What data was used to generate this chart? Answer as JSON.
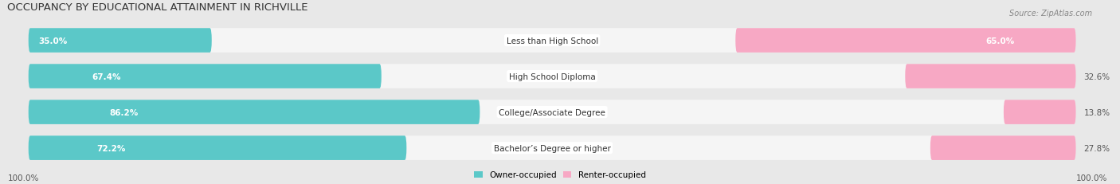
{
  "title": "OCCUPANCY BY EDUCATIONAL ATTAINMENT IN RICHVILLE",
  "source": "Source: ZipAtlas.com",
  "categories": [
    "Less than High School",
    "High School Diploma",
    "College/Associate Degree",
    "Bachelor’s Degree or higher"
  ],
  "owner_pct": [
    35.0,
    67.4,
    86.2,
    72.2
  ],
  "renter_pct": [
    65.0,
    32.6,
    13.8,
    27.8
  ],
  "owner_color": "#5BC8C8",
  "renter_color": "#F7A8C4",
  "bg_color": "#e8e8e8",
  "bar_bg_color": "#f5f5f5",
  "title_fontsize": 9.5,
  "label_fontsize": 7.5,
  "tick_fontsize": 7.5,
  "source_fontsize": 7,
  "bar_height": 0.68,
  "x_left_label": "100.0%",
  "x_right_label": "100.0%"
}
